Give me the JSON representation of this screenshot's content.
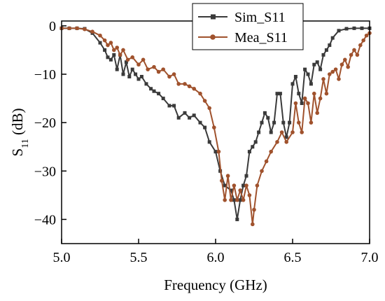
{
  "chart_data": {
    "type": "line",
    "xlabel": "Frequency (GHz)",
    "ylabel_main": "S",
    "ylabel_sub": "11",
    "ylabel_unit": " (dB)",
    "xlim": [
      5.0,
      7.0
    ],
    "ylim": [
      -45,
      1
    ],
    "xticks": [
      {
        "value": 5.0,
        "label": "5.0"
      },
      {
        "value": 5.5,
        "label": "5.5"
      },
      {
        "value": 6.0,
        "label": "6.0"
      },
      {
        "value": 6.5,
        "label": "6.5"
      },
      {
        "value": 7.0,
        "label": "7.0"
      }
    ],
    "yticks": [
      {
        "value": 0,
        "label": "0"
      },
      {
        "value": -10,
        "label": "-10"
      },
      {
        "value": -20,
        "label": "-20"
      },
      {
        "value": -30,
        "label": "-30"
      },
      {
        "value": -40,
        "label": "-40"
      }
    ],
    "grid": false,
    "legend_position": "top-right",
    "series": [
      {
        "name": "Sim_S11",
        "color": "#3a3a3a",
        "marker": "square",
        "x": [
          5.0,
          5.05,
          5.1,
          5.15,
          5.2,
          5.25,
          5.28,
          5.3,
          5.32,
          5.34,
          5.36,
          5.38,
          5.4,
          5.42,
          5.44,
          5.46,
          5.48,
          5.5,
          5.52,
          5.55,
          5.58,
          5.6,
          5.63,
          5.66,
          5.7,
          5.73,
          5.76,
          5.8,
          5.83,
          5.86,
          5.9,
          5.93,
          5.96,
          6.0,
          6.03,
          6.06,
          6.1,
          6.12,
          6.14,
          6.16,
          6.18,
          6.2,
          6.22,
          6.24,
          6.26,
          6.28,
          6.3,
          6.32,
          6.34,
          6.36,
          6.38,
          6.4,
          6.42,
          6.44,
          6.46,
          6.48,
          6.5,
          6.52,
          6.54,
          6.56,
          6.58,
          6.6,
          6.62,
          6.64,
          6.66,
          6.68,
          6.7,
          6.72,
          6.74,
          6.76,
          6.8,
          6.85,
          6.9,
          6.95,
          7.0
        ],
        "y": [
          -0.5,
          -0.5,
          -0.5,
          -0.6,
          -1.5,
          -3.5,
          -5.0,
          -6.5,
          -7.0,
          -6.0,
          -9.0,
          -6.0,
          -10.0,
          -7.5,
          -10.5,
          -9.0,
          -10.0,
          -11.0,
          -10.5,
          -12.0,
          -13.0,
          -13.5,
          -14.0,
          -15.0,
          -16.5,
          -16.5,
          -19.0,
          -18.0,
          -19.0,
          -18.5,
          -20.0,
          -21.0,
          -24.0,
          -26.0,
          -30.0,
          -33.0,
          -34.0,
          -36.0,
          -40.0,
          -36.0,
          -33.0,
          -31.0,
          -26.0,
          -25.0,
          -24.0,
          -22.0,
          -20.0,
          -18.0,
          -19.0,
          -22.0,
          -20.0,
          -14.0,
          -14.0,
          -20.0,
          -23.0,
          -20.0,
          -12.0,
          -10.5,
          -14.0,
          -16.0,
          -9.0,
          -10.0,
          -12.0,
          -8.0,
          -7.5,
          -9.0,
          -6.0,
          -5.0,
          -4.0,
          -2.5,
          -1.0,
          -0.6,
          -0.5,
          -0.5,
          -0.5
        ]
      },
      {
        "name": "Mea_S11",
        "color": "#a0522d",
        "marker": "circle",
        "x": [
          5.0,
          5.05,
          5.1,
          5.15,
          5.2,
          5.25,
          5.28,
          5.3,
          5.32,
          5.34,
          5.36,
          5.38,
          5.4,
          5.43,
          5.46,
          5.5,
          5.53,
          5.56,
          5.6,
          5.63,
          5.66,
          5.7,
          5.73,
          5.76,
          5.8,
          5.83,
          5.86,
          5.9,
          5.93,
          5.96,
          5.99,
          6.02,
          6.04,
          6.06,
          6.08,
          6.1,
          6.12,
          6.14,
          6.16,
          6.18,
          6.2,
          6.22,
          6.24,
          6.25,
          6.27,
          6.3,
          6.33,
          6.36,
          6.4,
          6.43,
          6.46,
          6.5,
          6.52,
          6.54,
          6.56,
          6.58,
          6.6,
          6.62,
          6.64,
          6.66,
          6.68,
          6.7,
          6.72,
          6.74,
          6.76,
          6.78,
          6.8,
          6.82,
          6.84,
          6.86,
          6.88,
          6.9,
          6.92,
          6.94,
          6.96,
          6.98,
          7.0
        ],
        "y": [
          -0.5,
          -0.5,
          -0.5,
          -0.7,
          -1.2,
          -2.0,
          -3.0,
          -4.0,
          -3.5,
          -5.0,
          -4.5,
          -6.0,
          -5.0,
          -7.0,
          -6.5,
          -8.0,
          -7.0,
          -9.0,
          -8.5,
          -9.5,
          -9.0,
          -10.5,
          -10.0,
          -12.0,
          -12.0,
          -12.5,
          -13.0,
          -14.0,
          -15.5,
          -17.0,
          -21.0,
          -26.0,
          -32.0,
          -36.0,
          -31.0,
          -36.0,
          -33.0,
          -36.0,
          -34.0,
          -36.0,
          -33.0,
          -35.0,
          -41.0,
          -38.0,
          -33.0,
          -30.0,
          -28.0,
          -26.0,
          -24.0,
          -22.0,
          -24.0,
          -22.0,
          -16.0,
          -20.0,
          -22.0,
          -15.0,
          -16.0,
          -20.0,
          -14.0,
          -18.0,
          -15.0,
          -11.0,
          -14.0,
          -10.0,
          -9.5,
          -9.0,
          -11.0,
          -8.0,
          -7.0,
          -8.5,
          -6.0,
          -5.0,
          -6.0,
          -4.0,
          -3.0,
          -2.0,
          -1.5
        ]
      }
    ]
  }
}
